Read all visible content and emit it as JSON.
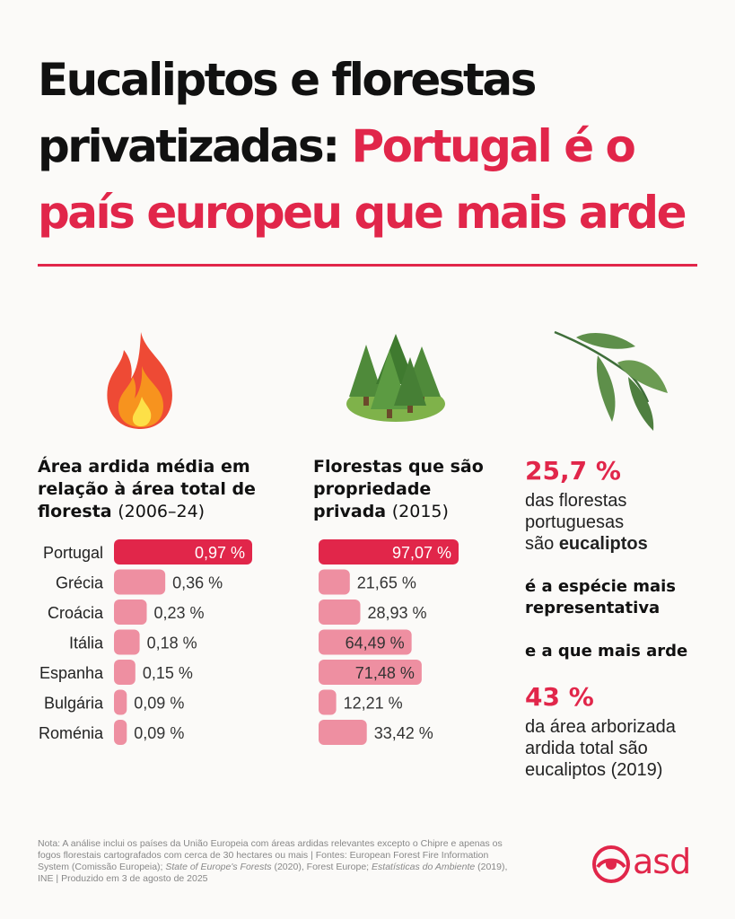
{
  "title": {
    "line1": "Eucaliptos e florestas",
    "line2a": "privatizadas: ",
    "line2b": "Portugal é o",
    "line3": "país europeu que mais arde"
  },
  "colors": {
    "accent": "#e1264a",
    "bar": "#ee8fa1",
    "text": "#111111"
  },
  "col1": {
    "title": "Área ardida média em relação à área total de floresta",
    "subtitle": "(2006–24)",
    "icon": "fire-icon"
  },
  "col2": {
    "title": "Florestas que são propriedade privada",
    "subtitle": "(2015)",
    "icon": "pine-trees-icon"
  },
  "col3": {
    "icon": "eucalyptus-leaf-icon",
    "stat1": "25,7 %",
    "stat1_text": [
      "das florestas",
      "portuguesas"
    ],
    "stat1_text_c_pre": "são ",
    "stat1_text_c_bold": "eucaliptos",
    "line_a": "é a espécie mais",
    "line_b": "representativa",
    "line_c": "e a que mais arde",
    "stat2": "43 %",
    "stat2_text": [
      "da área arborizada",
      "ardida total são",
      "eucaliptos (2019)"
    ]
  },
  "chart_data": [
    {
      "type": "bar",
      "title": "Área ardida média em relação à área total de floresta (2006–24)",
      "categories": [
        "Portugal",
        "Grécia",
        "Croácia",
        "Itália",
        "Espanha",
        "Bulgária",
        "Roménia"
      ],
      "values": [
        0.97,
        0.36,
        0.23,
        0.18,
        0.15,
        0.09,
        0.09
      ],
      "labels": [
        "0,97 %",
        "0,36 %",
        "0,23 %",
        "0,18 %",
        "0,15 %",
        "0,09 %",
        "0,09 %"
      ],
      "highlight": "Portugal"
    },
    {
      "type": "bar",
      "title": "Florestas que são propriedade privada (2015)",
      "categories": [
        "Portugal",
        "Grécia",
        "Croácia",
        "Itália",
        "Espanha",
        "Bulgária",
        "Roménia"
      ],
      "values": [
        97.07,
        21.65,
        28.93,
        64.49,
        71.48,
        12.21,
        33.42
      ],
      "labels": [
        "97,07 %",
        "21,65 %",
        "28,93 %",
        "64,49 %",
        "71,48 %",
        "12,21 %",
        "33,42 %"
      ],
      "highlight": "Portugal"
    }
  ],
  "note": {
    "part1": "Nota: A análise inclui os países da União Europeia com áreas ardidas relevantes excepto o Chipre e apenas os fogos florestais cartografados com cerca de 30 hectares ou mais | Fontes: European Forest Fire Information System (Comissão Europeia); ",
    "italic1": "State of Europe's Forests",
    "part2": " (2020), Forest Europe; ",
    "italic2": "Estatísticas do Ambiente",
    "part3": " (2019), INE | Produzido em 3 de agosto de 2025"
  },
  "logo": {
    "text": "asd",
    "icon": "asd-logo-icon"
  }
}
